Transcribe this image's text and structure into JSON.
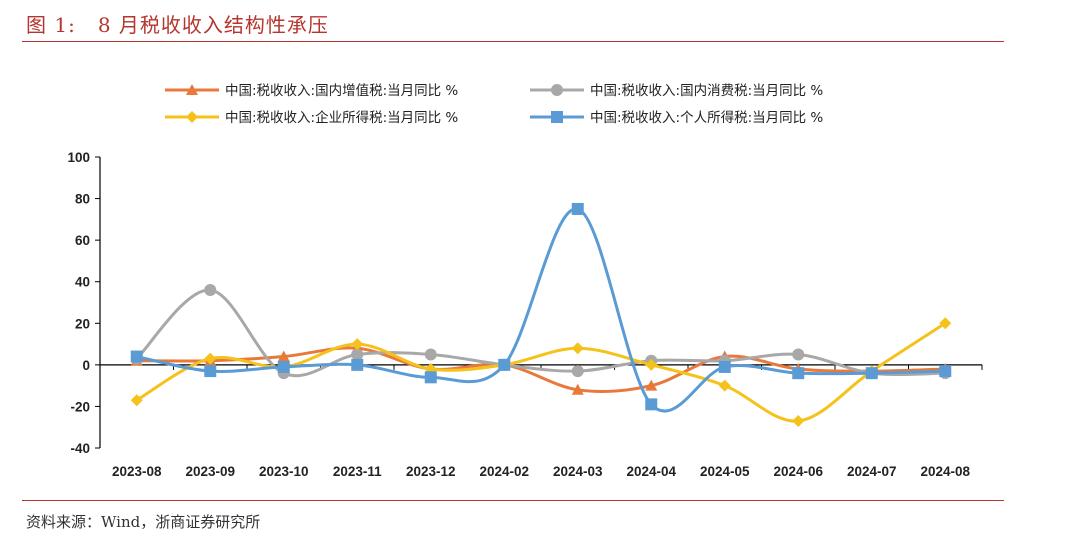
{
  "header": {
    "figure_num": "图 1:",
    "title": "8 月税收收入结构性承压"
  },
  "source": "资料来源：Wind，浙商证券研究所",
  "chart_data": {
    "type": "line",
    "title": "8 月税收收入结构性承压",
    "categories": [
      "2023-08",
      "2023-09",
      "2023-10",
      "2023-11",
      "2023-12",
      "2024-02",
      "2024-03",
      "2024-04",
      "2024-05",
      "2024-06",
      "2024-07",
      "2024-08"
    ],
    "ylim": [
      -40,
      100
    ],
    "yticks": [
      -40,
      -20,
      0,
      20,
      40,
      60,
      80,
      100
    ],
    "grid": false,
    "legend_position": "top",
    "smooth": true,
    "series": [
      {
        "name": "中国:税收收入:国内增值税:当月同比 %",
        "color": "#e8793b",
        "marker": "triangle",
        "values": [
          2,
          2,
          4,
          8,
          -2,
          0,
          -12,
          -10,
          4,
          -2,
          -3,
          -2
        ]
      },
      {
        "name": "中国:税收收入:国内消费税:当月同比 %",
        "color": "#a8a8a8",
        "marker": "circle",
        "values": [
          3,
          36,
          -4,
          5,
          5,
          0,
          -3,
          2,
          2,
          5,
          -4,
          -4
        ]
      },
      {
        "name": "中国:税收收入:企业所得税:当月同比 %",
        "color": "#f5c21b",
        "marker": "diamond",
        "values": [
          -17,
          3,
          -1,
          10,
          -2,
          0,
          8,
          0,
          -10,
          -27,
          -3,
          20
        ]
      },
      {
        "name": "中国:税收收入:个人所得税:当月同比 %",
        "color": "#5b9bd5",
        "marker": "square",
        "values": [
          4,
          -3,
          -1,
          0,
          -6,
          0,
          75,
          -19,
          -1,
          -4,
          -4,
          -3
        ]
      }
    ]
  }
}
